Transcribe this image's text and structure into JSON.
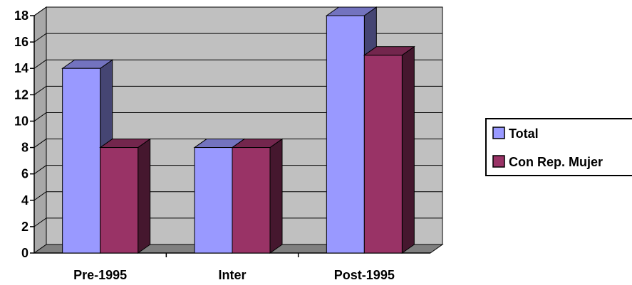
{
  "chart_data": {
    "type": "bar",
    "categories": [
      "Pre-1995",
      "Inter",
      "Post-1995"
    ],
    "series": [
      {
        "name": "Total",
        "values": [
          14,
          8,
          18
        ],
        "color": "#9999ff"
      },
      {
        "name": "Con Rep. Mujer",
        "values": [
          8,
          8,
          15
        ],
        "color": "#993366"
      }
    ],
    "ylim": [
      0,
      18
    ],
    "yticks": [
      "0",
      "2",
      "4",
      "6",
      "8",
      "10",
      "12",
      "14",
      "16",
      "18"
    ],
    "grid": true,
    "legend": "right",
    "plot_background": "#c0c0c0"
  }
}
